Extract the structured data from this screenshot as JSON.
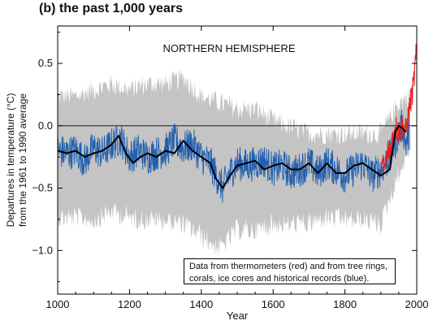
{
  "title": "(b) the past 1,000 years",
  "chart_data": {
    "type": "line",
    "panel_label": "NORTHERN HEMISPHERE",
    "xlabel": "Year",
    "ylabel_line1": "Departures in temperature (°C)",
    "ylabel_line2": "from the 1961 to 1990 average",
    "xlim": [
      1000,
      2000
    ],
    "ylim": [
      -1.35,
      0.8
    ],
    "x_ticks": [
      1000,
      1200,
      1400,
      1600,
      1800,
      2000
    ],
    "y_ticks": [
      {
        "value": 0.5,
        "label": "0.5"
      },
      {
        "value": 0.0,
        "label": "0.0"
      },
      {
        "value": -0.5,
        "label": "−0.5"
      },
      {
        "value": -1.0,
        "label": "−1.0"
      }
    ],
    "annotation": {
      "line1": "Data from thermometers (red) and from tree rings,",
      "line2": "corals, ice cores and historical records (blue)."
    },
    "colors": {
      "uncertainty": "#c4c4c4",
      "proxy": "#1f5fb0",
      "instrumental": "#e8201c",
      "smoothed": "#000000"
    },
    "zero_line": true,
    "grid": false,
    "series": [
      {
        "name": "uncertainty_band",
        "x": [
          1000,
          1050,
          1100,
          1150,
          1200,
          1250,
          1300,
          1350,
          1400,
          1450,
          1500,
          1550,
          1600,
          1650,
          1700,
          1750,
          1800,
          1850,
          1900,
          1950,
          1980
        ],
        "upper": [
          0.2,
          0.2,
          0.25,
          0.3,
          0.25,
          0.3,
          0.3,
          0.35,
          0.2,
          0.15,
          0.1,
          0.1,
          0.0,
          -0.05,
          -0.1,
          -0.1,
          -0.1,
          -0.1,
          -0.1,
          0.15,
          0.2
        ],
        "lower": [
          -0.7,
          -0.7,
          -0.72,
          -0.65,
          -0.7,
          -0.72,
          -0.72,
          -0.75,
          -0.85,
          -0.95,
          -0.8,
          -0.8,
          -0.75,
          -0.75,
          -0.75,
          -0.7,
          -0.72,
          -0.72,
          -0.75,
          -0.35,
          -0.15
        ]
      },
      {
        "name": "proxy_records",
        "x": [
          1000,
          1025,
          1050,
          1075,
          1100,
          1125,
          1150,
          1175,
          1200,
          1225,
          1250,
          1275,
          1300,
          1325,
          1350,
          1375,
          1400,
          1425,
          1450,
          1460,
          1475,
          1500,
          1525,
          1550,
          1575,
          1600,
          1625,
          1650,
          1675,
          1700,
          1725,
          1750,
          1775,
          1800,
          1825,
          1850,
          1875,
          1900,
          1925,
          1950,
          1960,
          1970,
          1980
        ],
        "values": [
          -0.2,
          -0.22,
          -0.2,
          -0.28,
          -0.18,
          -0.22,
          -0.15,
          -0.1,
          -0.25,
          -0.2,
          -0.25,
          -0.22,
          -0.2,
          -0.12,
          -0.18,
          -0.15,
          -0.25,
          -0.3,
          -0.45,
          -0.5,
          -0.4,
          -0.3,
          -0.32,
          -0.3,
          -0.28,
          -0.35,
          -0.32,
          -0.38,
          -0.35,
          -0.3,
          -0.38,
          -0.3,
          -0.35,
          -0.4,
          -0.35,
          -0.3,
          -0.4,
          -0.35,
          -0.25,
          -0.05,
          0.0,
          -0.15,
          -0.05
        ]
      },
      {
        "name": "smoothed_50yr",
        "x": [
          1000,
          1025,
          1050,
          1075,
          1100,
          1125,
          1150,
          1170,
          1190,
          1210,
          1230,
          1250,
          1275,
          1300,
          1325,
          1350,
          1375,
          1400,
          1425,
          1440,
          1460,
          1480,
          1500,
          1525,
          1550,
          1575,
          1600,
          1625,
          1650,
          1675,
          1700,
          1725,
          1750,
          1775,
          1800,
          1825,
          1850,
          1875,
          1900,
          1925,
          1940,
          1950,
          1960,
          1970
        ],
        "values": [
          -0.2,
          -0.22,
          -0.2,
          -0.25,
          -0.22,
          -0.2,
          -0.15,
          -0.08,
          -0.22,
          -0.3,
          -0.25,
          -0.22,
          -0.25,
          -0.2,
          -0.22,
          -0.12,
          -0.2,
          -0.25,
          -0.3,
          -0.42,
          -0.5,
          -0.4,
          -0.32,
          -0.3,
          -0.28,
          -0.35,
          -0.32,
          -0.3,
          -0.35,
          -0.35,
          -0.3,
          -0.38,
          -0.3,
          -0.38,
          -0.38,
          -0.32,
          -0.3,
          -0.35,
          -0.4,
          -0.35,
          -0.05,
          0.0,
          -0.02,
          -0.05
        ]
      },
      {
        "name": "instrumental",
        "x": [
          1902,
          1910,
          1920,
          1930,
          1940,
          1950,
          1960,
          1970,
          1980,
          1990,
          1998
        ],
        "values": [
          -0.3,
          -0.35,
          -0.2,
          -0.15,
          0.0,
          -0.05,
          0.0,
          -0.05,
          0.15,
          0.3,
          0.55
        ]
      }
    ]
  }
}
